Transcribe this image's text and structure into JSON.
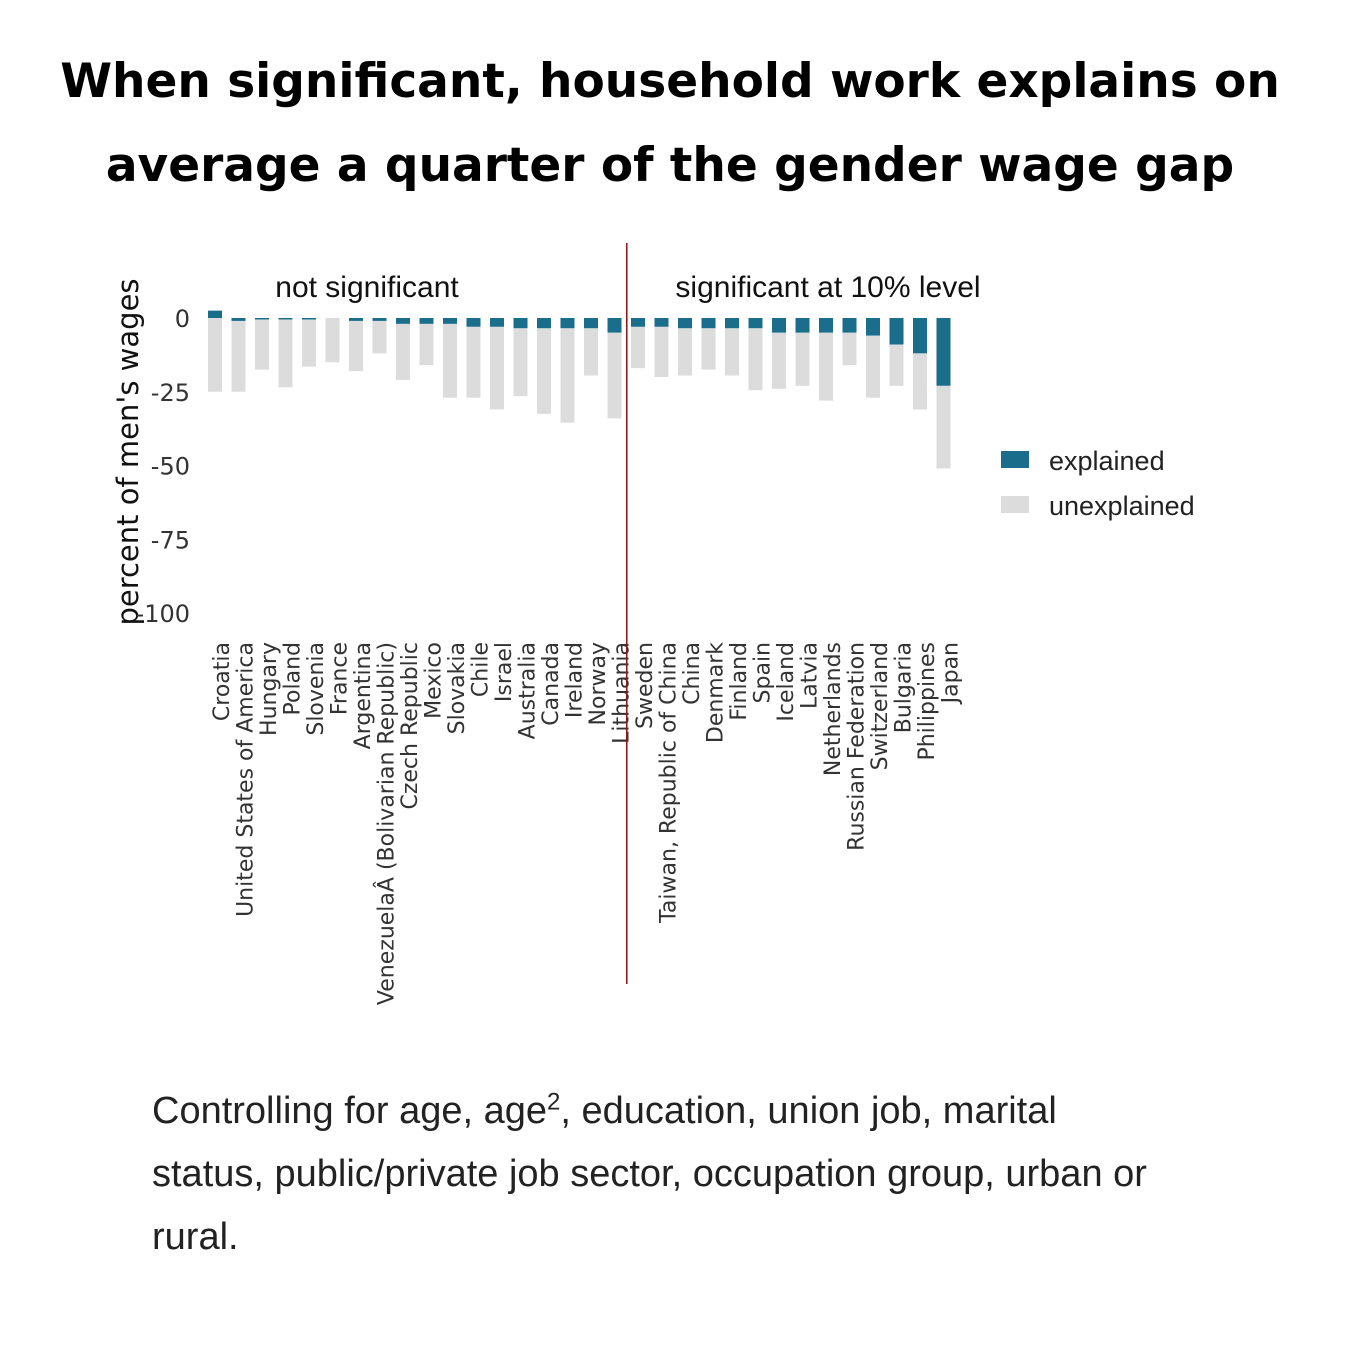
{
  "title_line1": "When significant, household work explains on",
  "title_line2": "average a quarter of the gender wage gap",
  "caption": {
    "part1": "Controlling for age, age",
    "superscript": "2",
    "part2": ", education, union job, marital status, public/private job sector, occupation group, urban or rural."
  },
  "colors": {
    "explained": "#1a6e8c",
    "unexplained": "#dcdcdc",
    "divider": "#8b1a1a"
  },
  "chart_data": {
    "type": "bar",
    "stacked": true,
    "ylabel": "percent of men's wages",
    "ylim": [
      -100,
      5
    ],
    "yticks": [
      0,
      -25,
      -50,
      -75,
      -100
    ],
    "ytick_labels": [
      "0",
      "-25",
      "-50",
      "-75",
      "-100"
    ],
    "legend": {
      "position": "right",
      "entries": [
        "explained",
        "unexplained"
      ]
    },
    "groups": [
      {
        "label": "not significant",
        "count": 18
      },
      {
        "label": "significant at 10% level",
        "count": 14
      }
    ],
    "categories": [
      "Croatia",
      "United States of America",
      "Hungary",
      "Poland",
      "Slovenia",
      "France",
      "Argentina",
      "VenezuelaÂ (Bolivarian Republic)",
      "Czech Republic",
      "Mexico",
      "Slovakia",
      "Chile",
      "Israel",
      "Australia",
      "Canada",
      "Ireland",
      "Norway",
      "Lithuania",
      "Sweden",
      "Taiwan, Republic of China",
      "China",
      "Denmark",
      "Finland",
      "Spain",
      "Iceland",
      "Latvia",
      "Netherlands",
      "Russian Federation",
      "Switzerland",
      "Bulgaria",
      "Philippines",
      "Japan"
    ],
    "series": [
      {
        "name": "explained",
        "values": [
          2.5,
          -1,
          -0.5,
          -0.5,
          -0.5,
          0,
          -1,
          -1,
          -2,
          -2,
          -2,
          -3,
          -3,
          -3.5,
          -3.5,
          -3.5,
          -3.5,
          -5,
          -3,
          -3,
          -3.5,
          -3.5,
          -3.5,
          -3.5,
          -5,
          -5,
          -5,
          -5,
          -6,
          -9,
          -12,
          -23
        ]
      },
      {
        "name": "unexplained",
        "values": [
          -25,
          -24,
          -17,
          -23,
          -16,
          -15,
          -17,
          -11,
          -19,
          -14,
          -25,
          -24,
          -28,
          -23,
          -29,
          -32,
          -16,
          -29,
          -14,
          -17,
          -16,
          -14,
          -16,
          -21,
          -19,
          -18,
          -23,
          -11,
          -21,
          -14,
          -19,
          -28
        ]
      }
    ]
  }
}
